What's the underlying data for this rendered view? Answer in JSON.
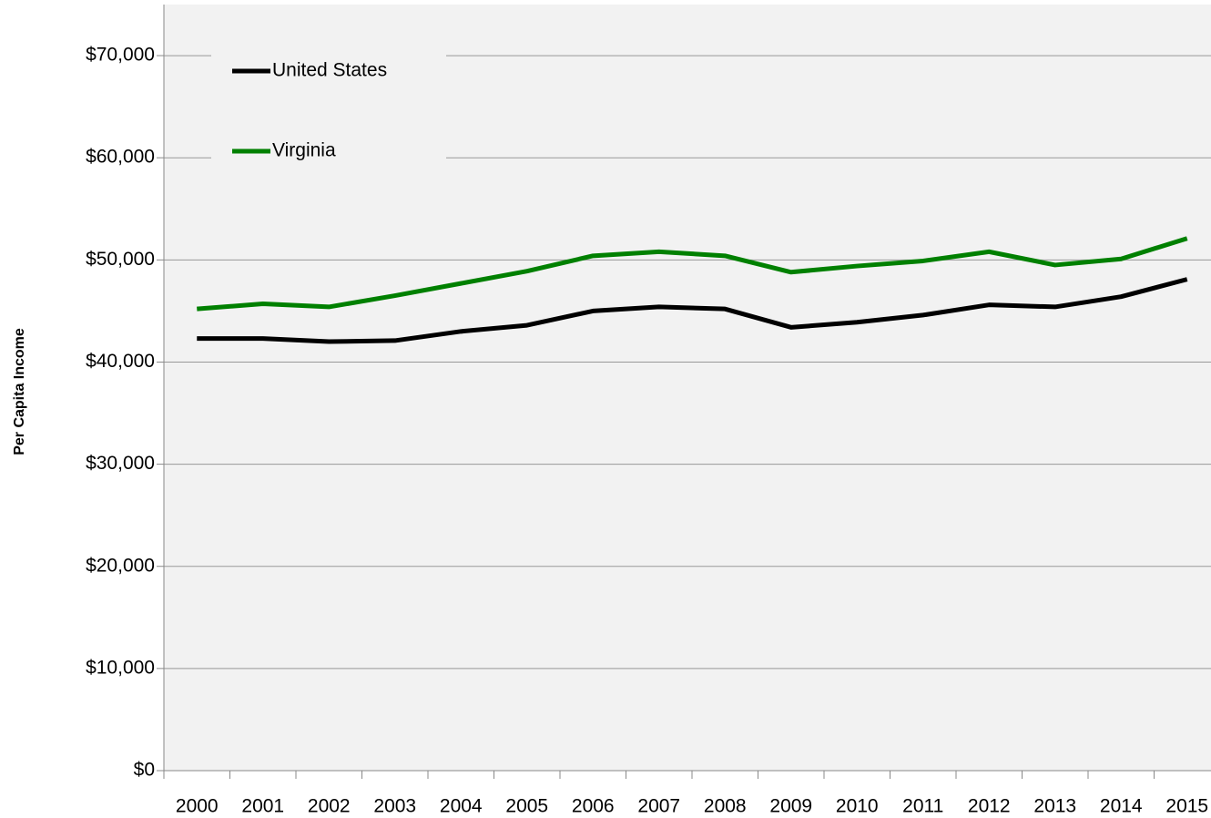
{
  "chart_data": {
    "type": "line",
    "y_label": "Per Capita Income",
    "categories": [
      "2000",
      "2001",
      "2002",
      "2003",
      "2004",
      "2005",
      "2006",
      "2007",
      "2008",
      "2009",
      "2010",
      "2011",
      "2012",
      "2013",
      "2014",
      "2015"
    ],
    "series": [
      {
        "name": "United States",
        "color": "#000000",
        "values": [
          42300,
          42300,
          42000,
          42100,
          43000,
          43600,
          45000,
          45400,
          45200,
          43400,
          43900,
          44600,
          45600,
          45400,
          46400,
          48100
        ]
      },
      {
        "name": "Virginia",
        "color": "#008000",
        "values": [
          45200,
          45700,
          45400,
          46500,
          47700,
          48900,
          50400,
          50800,
          50400,
          48800,
          49400,
          49900,
          50800,
          49500,
          50100,
          52100
        ]
      }
    ],
    "ylim": [
      0,
      75000
    ],
    "yticks": [
      {
        "value": 0,
        "label": "$0"
      },
      {
        "value": 10000,
        "label": "$10,000"
      },
      {
        "value": 20000,
        "label": "$20,000"
      },
      {
        "value": 30000,
        "label": "$30,000"
      },
      {
        "value": 40000,
        "label": "$40,000"
      },
      {
        "value": 50000,
        "label": "$50,000"
      },
      {
        "value": 60000,
        "label": "$60,000"
      },
      {
        "value": 70000,
        "label": "$70,000"
      }
    ],
    "grid": true,
    "legend": "upper left"
  }
}
